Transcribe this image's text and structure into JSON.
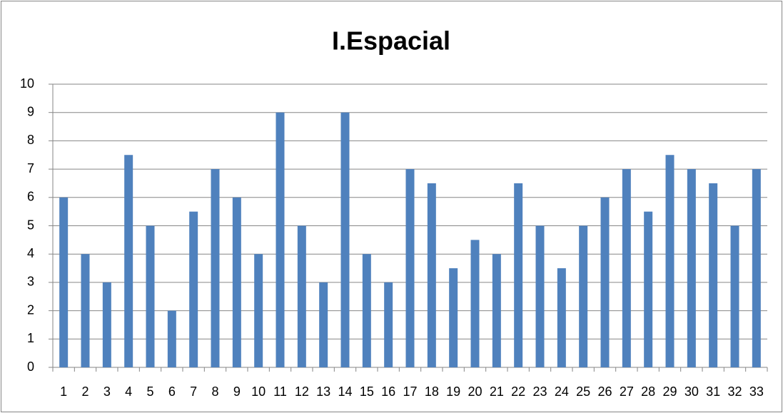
{
  "chart_data": {
    "type": "bar",
    "title": "I.Espacial",
    "categories": [
      "1",
      "2",
      "3",
      "4",
      "5",
      "6",
      "7",
      "8",
      "9",
      "10",
      "11",
      "12",
      "13",
      "14",
      "15",
      "16",
      "17",
      "18",
      "19",
      "20",
      "21",
      "22",
      "23",
      "24",
      "25",
      "26",
      "27",
      "28",
      "29",
      "30",
      "31",
      "32",
      "33"
    ],
    "values": [
      6,
      4,
      3,
      7.5,
      5,
      2,
      5.5,
      7,
      6,
      4,
      9,
      5,
      3,
      9,
      4,
      3,
      7,
      6.5,
      3.5,
      4.5,
      4,
      6.5,
      5,
      3.5,
      5,
      6,
      7,
      5.5,
      7.5,
      7,
      6.5,
      5,
      7
    ],
    "color": "#4f81bd",
    "ylim": [
      0,
      10
    ],
    "yticks": [
      0,
      1,
      2,
      3,
      4,
      5,
      6,
      7,
      8,
      9,
      10
    ],
    "grid": true
  }
}
